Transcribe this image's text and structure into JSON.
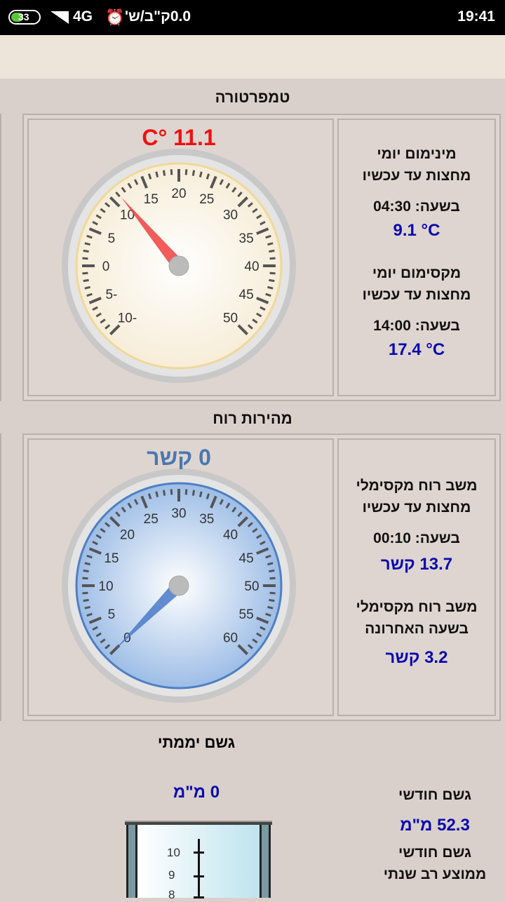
{
  "status": {
    "battery": "33",
    "network": "4G",
    "speed": "0.0ק\"ב/ש'",
    "time": "19:41"
  },
  "temperature": {
    "title": "טמפרטורה",
    "reading": "11.1 °C",
    "value": 11.1,
    "min": -10,
    "max": 50,
    "labels": [
      "-10",
      "-5",
      "0",
      "5",
      "10",
      "15",
      "20",
      "25",
      "30",
      "35",
      "40",
      "45",
      "50"
    ],
    "min_label1": "מינימום יומי",
    "min_label2": "מחצות עד עכשיו",
    "min_time": "בשעה: 04:30",
    "min_value": "9.1 °C",
    "max_label1": "מקסימום יומי",
    "max_label2": "מחצות עד עכשיו",
    "max_time": "בשעה: 14:00",
    "max_value": "17.4 °C",
    "color": "#ee1111"
  },
  "wind": {
    "title": "מהירות רוח",
    "reading": "0 קשר",
    "value": 0,
    "min": 0,
    "max": 60,
    "labels": [
      "0",
      "5",
      "10",
      "15",
      "20",
      "25",
      "30",
      "35",
      "40",
      "45",
      "50",
      "55",
      "60"
    ],
    "gust_label1": "משב רוח מקסימלי",
    "gust_label2": "מחצות עד עכשיו",
    "gust_time": "בשעה: 00:10",
    "gust_value": "13.7 קשר",
    "hour_label1": "משב רוח מקסימלי",
    "hour_label2": "בשעה האחרונה",
    "hour_value": "3.2 קשר",
    "color": "#4a78b0"
  },
  "rain": {
    "title": "גשם יממתי",
    "reading": "0 מ\"מ",
    "scale": [
      "10",
      "9",
      "8"
    ],
    "monthly_label": "גשם חודשי",
    "monthly_value": "52.3 מ\"מ",
    "avg_label1": "גשם חודשי",
    "avg_label2": "ממוצע רב שנתי"
  }
}
